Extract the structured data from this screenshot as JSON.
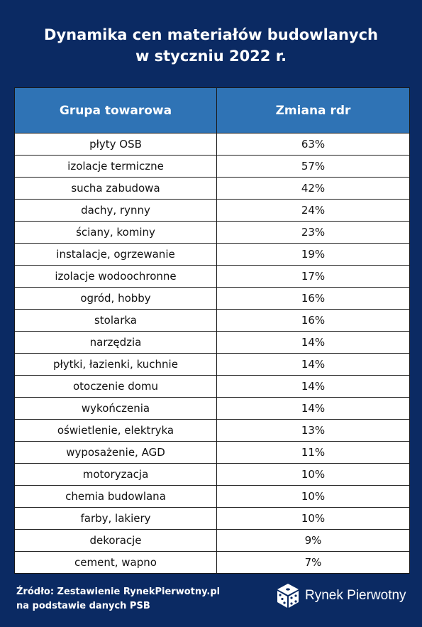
{
  "title": {
    "line1": "Dynamika cen materiałów budowlanych",
    "line2": "w styczniu 2022 r."
  },
  "table": {
    "headers": [
      "Grupa towarowa",
      "Zmiana rdr"
    ],
    "rows": [
      [
        "płyty OSB",
        "63%"
      ],
      [
        "izolacje termiczne",
        "57%"
      ],
      [
        "sucha zabudowa",
        "42%"
      ],
      [
        "dachy, rynny",
        "24%"
      ],
      [
        "ściany, kominy",
        "23%"
      ],
      [
        "instalacje, ogrzewanie",
        "19%"
      ],
      [
        "izolacje wodoochronne",
        "17%"
      ],
      [
        "ogród, hobby",
        "16%"
      ],
      [
        "stolarka",
        "16%"
      ],
      [
        "narzędzia",
        "14%"
      ],
      [
        "płytki, łazienki, kuchnie",
        "14%"
      ],
      [
        "otoczenie domu",
        "14%"
      ],
      [
        "wykończenia",
        "14%"
      ],
      [
        "oświetlenie, elektryka",
        "13%"
      ],
      [
        "wyposażenie, AGD",
        "11%"
      ],
      [
        "motoryzacja",
        "10%"
      ],
      [
        "chemia budowlana",
        "10%"
      ],
      [
        "farby, lakiery",
        "10%"
      ],
      [
        "dekoracje",
        "9%"
      ],
      [
        "cement, wapno",
        "7%"
      ]
    ]
  },
  "chart_data": {
    "type": "table",
    "title": "Dynamika cen materiałów budowlanych w styczniu 2022 r.",
    "columns": [
      "Grupa towarowa",
      "Zmiana rdr"
    ],
    "categories": [
      "płyty OSB",
      "izolacje termiczne",
      "sucha zabudowa",
      "dachy, rynny",
      "ściany, kominy",
      "instalacje, ogrzewanie",
      "izolacje wodoochronne",
      "ogród, hobby",
      "stolarka",
      "narzędzia",
      "płytki, łazienki, kuchnie",
      "otoczenie domu",
      "wykończenia",
      "oświetlenie, elektryka",
      "wyposażenie, AGD",
      "motoryzacja",
      "chemia budowlana",
      "farby, lakiery",
      "dekoracje",
      "cement, wapno"
    ],
    "values": [
      63,
      57,
      42,
      24,
      23,
      19,
      17,
      16,
      16,
      14,
      14,
      14,
      14,
      13,
      11,
      10,
      10,
      10,
      9,
      7
    ]
  },
  "footer": {
    "source_line1": "Źródło: Zestawienie RynekPierwotny.pl",
    "source_line2": "na podstawie danych PSB",
    "logo_text": "Rynek Pierwotny",
    "logo_icon": "cube-dice-logo-icon"
  },
  "colors": {
    "background": "#0b2a63",
    "header_fill": "#2f73b5",
    "cell_fill": "#ffffff",
    "border": "#1a1a1a"
  }
}
